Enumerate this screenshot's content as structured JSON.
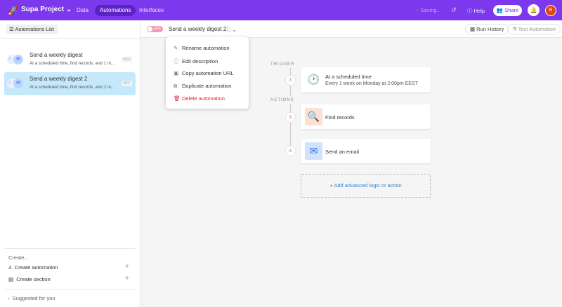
{
  "header": {
    "project": "Supa Project",
    "nav": [
      "Data",
      "Automations",
      "Interfaces"
    ],
    "active_nav": "Automations",
    "status": "Saving...",
    "help": "Help",
    "share": "Share",
    "avatar_initial": "B",
    "brand_color": "#7b38ec"
  },
  "sidebar": {
    "list_button": "Automations List",
    "items": [
      {
        "title": "Send a weekly digest",
        "subtitle": "At a scheduled time, find records, and 1 m...",
        "status": "OFF",
        "selected": false
      },
      {
        "title": "Send a weekly digest 2",
        "subtitle": "At a scheduled time, find records, and 1 m...",
        "status": "OFF",
        "selected": true
      }
    ],
    "create_label": "Create...",
    "create_automation": "Create automation",
    "create_section": "Create section",
    "suggested": "Suggested for you"
  },
  "toolbar": {
    "toggle": "OFF",
    "automation_name": "Send a weekly digest 2",
    "run_history": "Run History",
    "test_automation": "Test Automation"
  },
  "menu": {
    "items": [
      "Rename automation",
      "Edit description",
      "Copy automation URL",
      "Duplicate automation",
      "Delete automation"
    ]
  },
  "canvas": {
    "trigger_label": "TRIGGER",
    "actions_label": "ACTIONS",
    "trigger": {
      "title": "At a scheduled time",
      "subtitle": "Every 1 week on Monday at 2:00pm EEST"
    },
    "actions": [
      {
        "title": "Find records"
      },
      {
        "title": "Send an email"
      }
    ],
    "add": "+ Add advanced logic or action"
  }
}
